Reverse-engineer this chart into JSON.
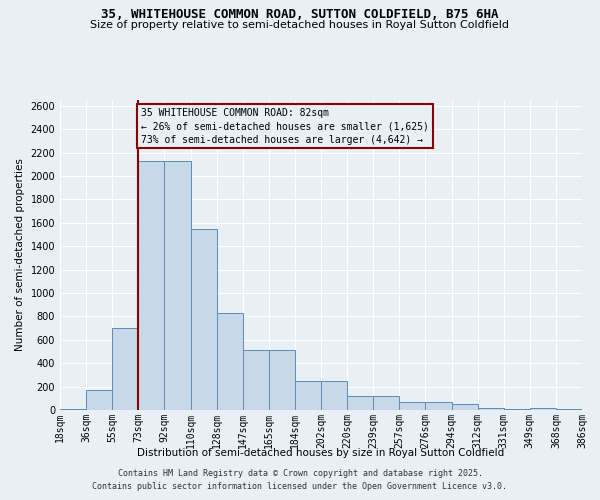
{
  "title1": "35, WHITEHOUSE COMMON ROAD, SUTTON COLDFIELD, B75 6HA",
  "title2": "Size of property relative to semi-detached houses in Royal Sutton Coldfield",
  "xlabel": "Distribution of semi-detached houses by size in Royal Sutton Coldfield",
  "ylabel": "Number of semi-detached properties",
  "footer1": "Contains HM Land Registry data © Crown copyright and database right 2025.",
  "footer2": "Contains public sector information licensed under the Open Government Licence v3.0.",
  "annotation_line1": "35 WHITEHOUSE COMMON ROAD: 82sqm",
  "annotation_line2": "← 26% of semi-detached houses are smaller (1,625)",
  "annotation_line3": "73% of semi-detached houses are larger (4,642) →",
  "bar_values": [
    10,
    170,
    700,
    2130,
    2130,
    1550,
    830,
    510,
    510,
    250,
    250,
    120,
    120,
    70,
    70,
    50,
    20,
    5,
    20,
    5
  ],
  "bin_labels": [
    "18sqm",
    "36sqm",
    "55sqm",
    "73sqm",
    "92sqm",
    "110sqm",
    "128sqm",
    "147sqm",
    "165sqm",
    "184sqm",
    "202sqm",
    "220sqm",
    "239sqm",
    "257sqm",
    "276sqm",
    "294sqm",
    "312sqm",
    "331sqm",
    "349sqm",
    "368sqm",
    "386sqm"
  ],
  "bar_color": "#c8d8e8",
  "bar_edge_color": "#5b8db8",
  "vline_color": "#8b0000",
  "vline_x": 3.0,
  "ylim": [
    0,
    2650
  ],
  "yticks": [
    0,
    200,
    400,
    600,
    800,
    1000,
    1200,
    1400,
    1600,
    1800,
    2000,
    2200,
    2400,
    2600
  ],
  "bg_color": "#e8eff5",
  "grid_color": "#ffffff",
  "title1_fontsize": 9,
  "title2_fontsize": 8,
  "ylabel_fontsize": 7.5,
  "xlabel_fontsize": 7.5,
  "tick_fontsize": 7,
  "footer_fontsize": 6,
  "ann_fontsize": 7
}
